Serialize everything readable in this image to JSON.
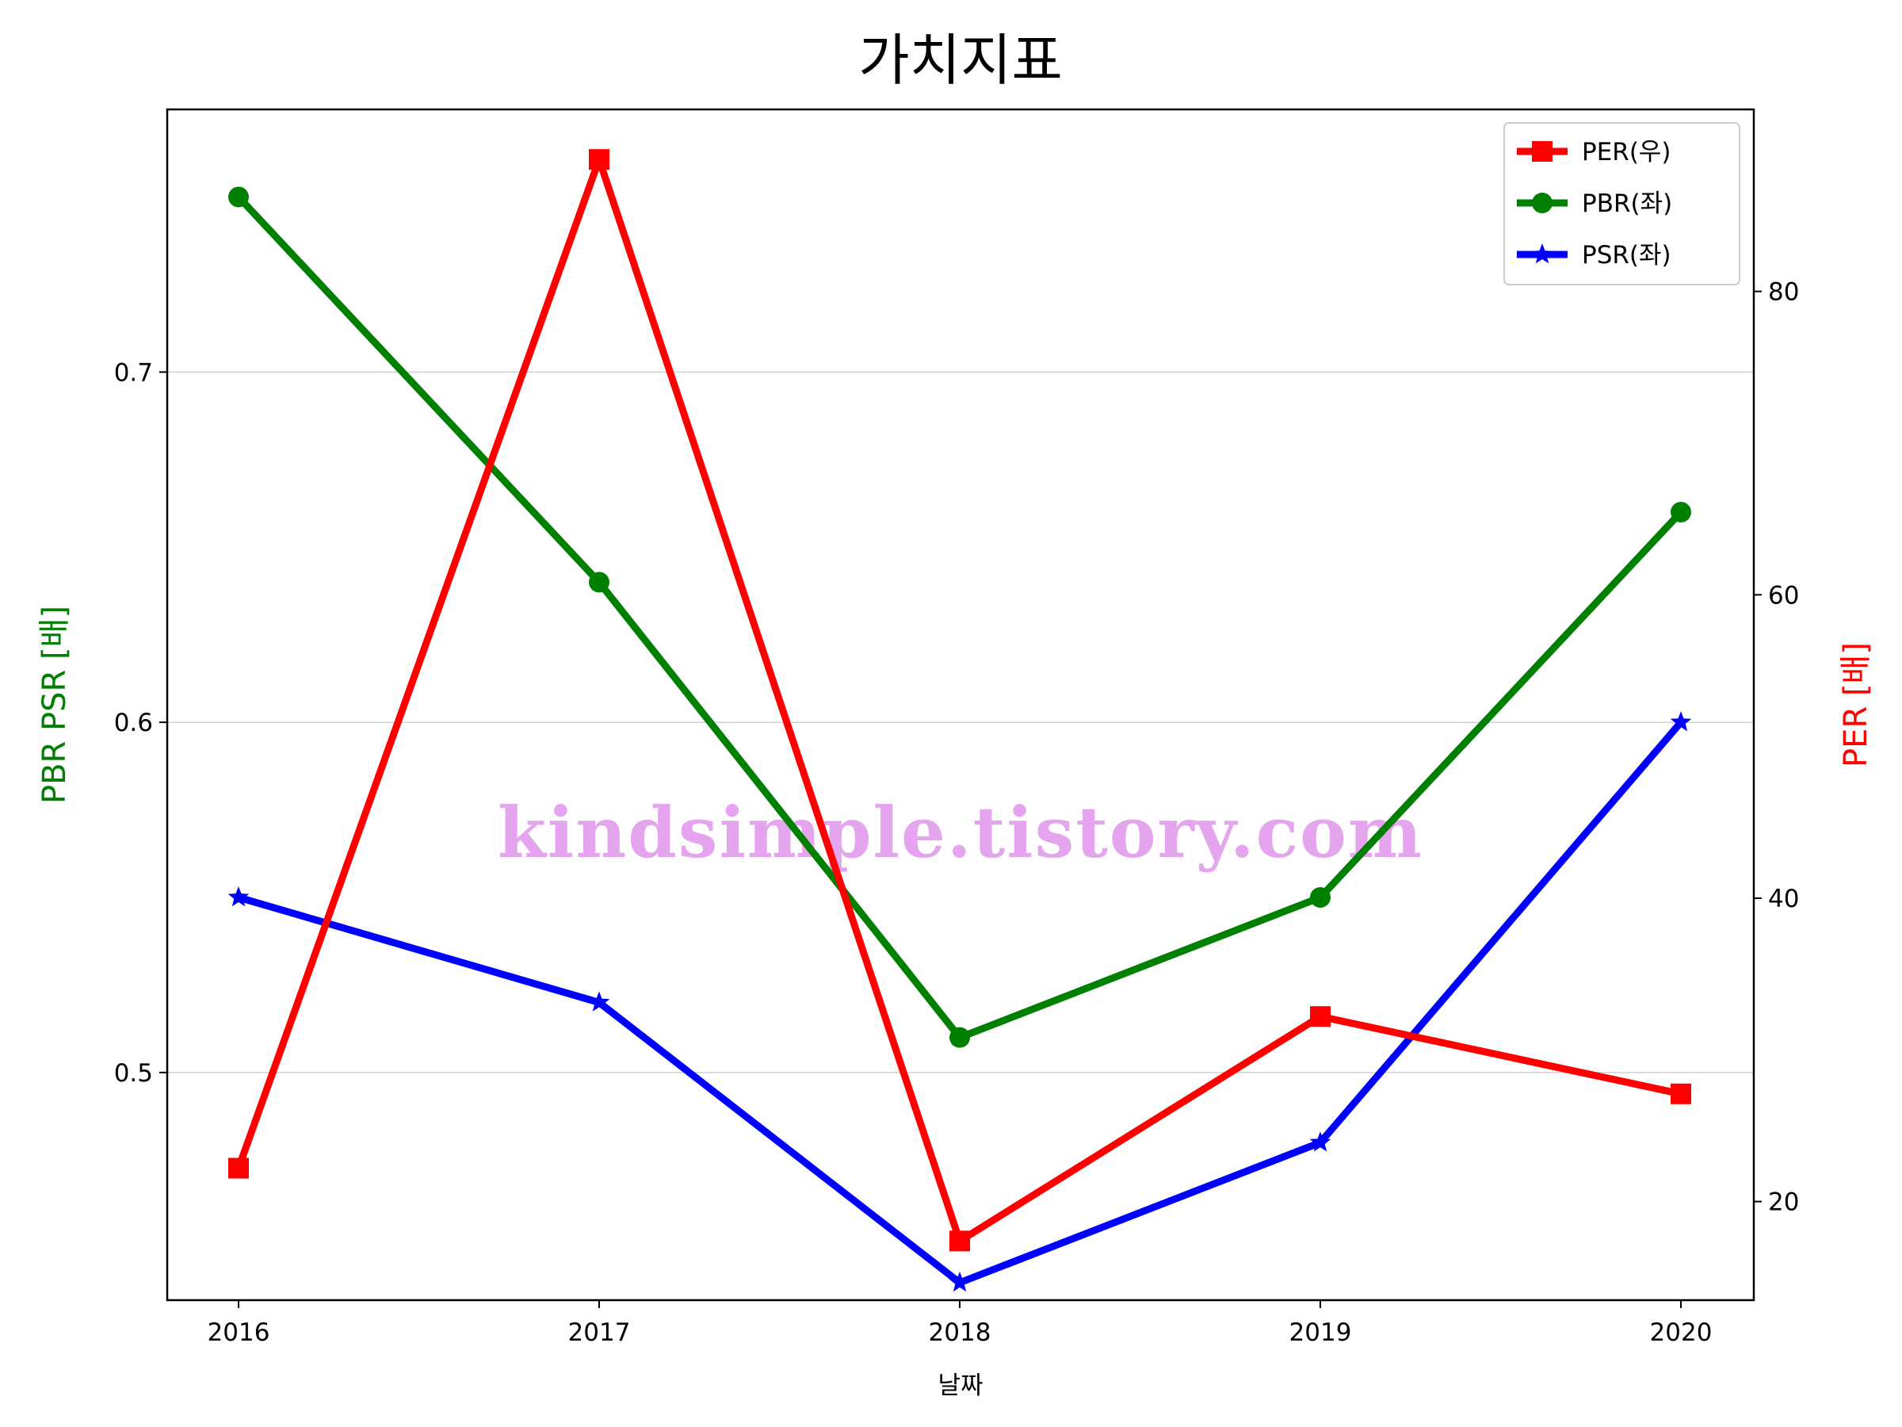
{
  "chart_data": {
    "type": "line",
    "title": "가치지표",
    "xlabel": "날짜",
    "ylabel_left": "PBR PSR [배]",
    "ylabel_right": "PER [배]",
    "categories": [
      "2016",
      "2017",
      "2018",
      "2019",
      "2020"
    ],
    "left_axis": {
      "ylim": [
        0.435,
        0.775
      ],
      "ticks": [
        0.5,
        0.6,
        0.7
      ],
      "tick_labels": [
        "0.5",
        "0.6",
        "0.7"
      ]
    },
    "right_axis": {
      "ylim": [
        13.5,
        92
      ],
      "ticks": [
        20,
        40,
        60,
        80
      ],
      "tick_labels": [
        "20",
        "40",
        "60",
        "80"
      ]
    },
    "grid": "horizontal (left axis)",
    "legend_position": "top-right",
    "series": [
      {
        "name": "PER(우)",
        "axis": "right",
        "color": "#ff0000",
        "marker": "square",
        "values": [
          22.2,
          88.7,
          17.4,
          32.2,
          27.1
        ]
      },
      {
        "name": "PBR(좌)",
        "axis": "left",
        "color": "#008000",
        "marker": "circle",
        "values": [
          0.75,
          0.64,
          0.51,
          0.55,
          0.66
        ]
      },
      {
        "name": "PSR(좌)",
        "axis": "left",
        "color": "#0000ff",
        "marker": "star",
        "values": [
          0.55,
          0.52,
          0.44,
          0.48,
          0.6
        ]
      }
    ]
  },
  "watermark": "kindsimple.tistory.com"
}
